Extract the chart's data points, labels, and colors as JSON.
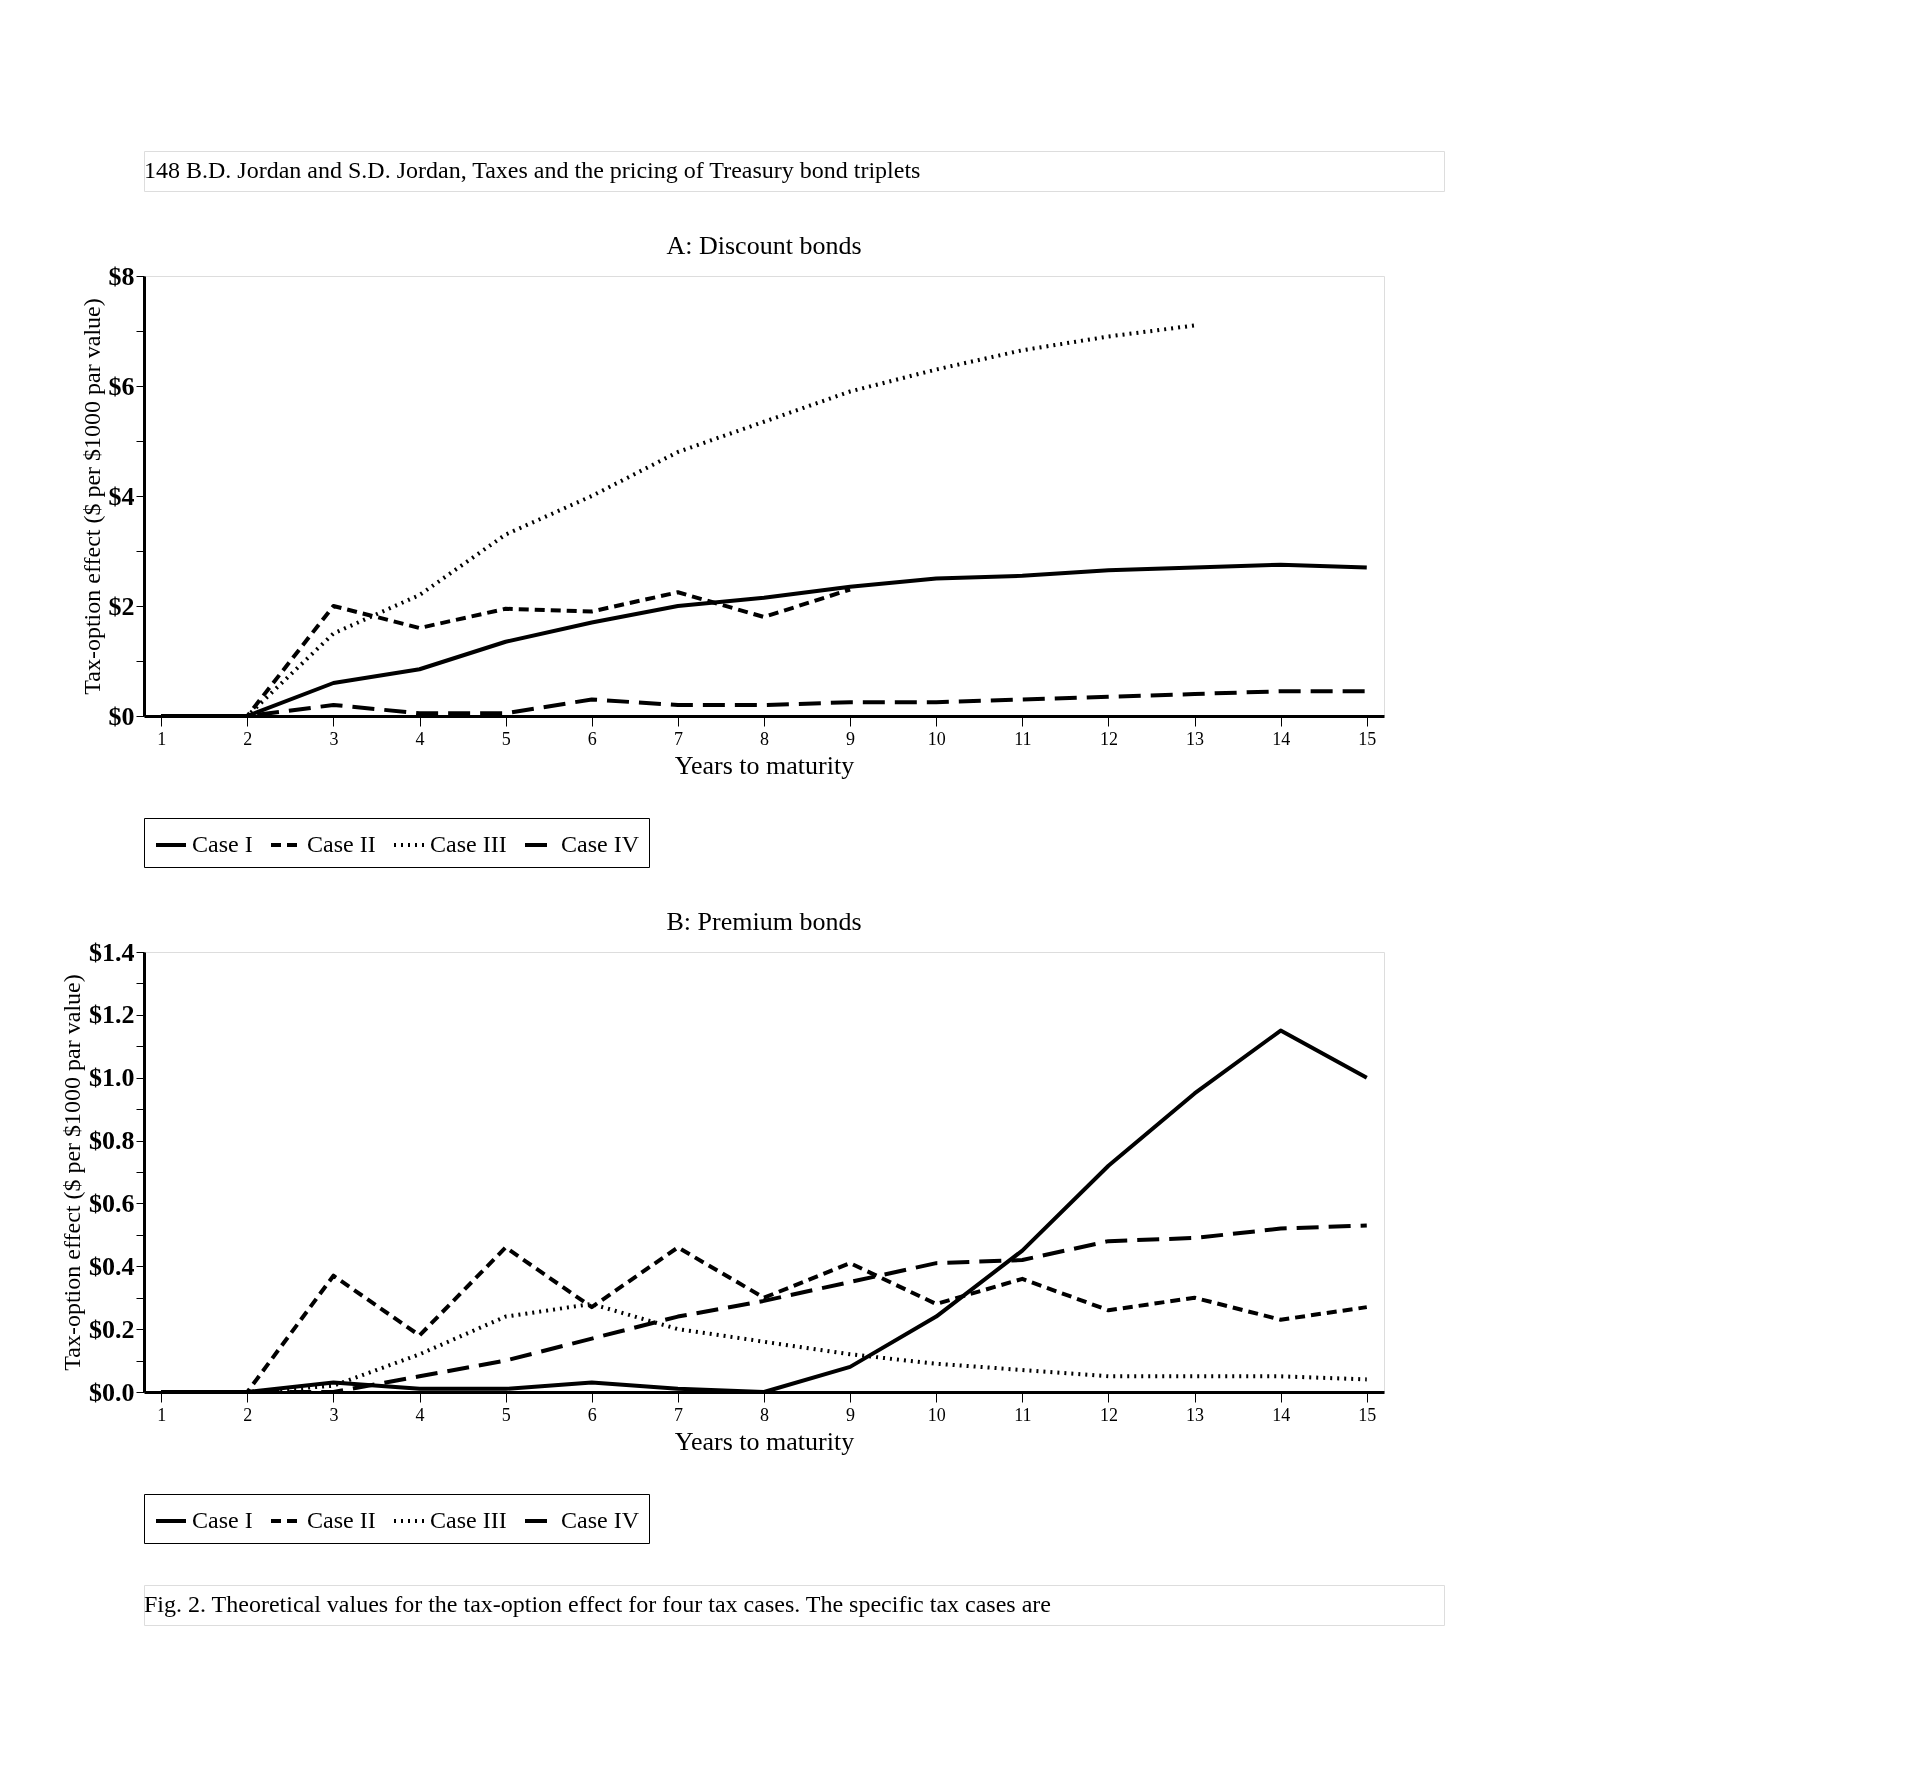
{
  "chart_data": [
    {
      "type": "line",
      "title": "A: Discount bonds",
      "xlabel": "Years to maturity",
      "ylabel": "Tax-option effect ($ per $1000 par value)",
      "annotations": [
        "148        B.D. Jordan and S.D. Jordan, Taxes and the pricing of Treasury bond triplets"
      ],
      "x": [
        1,
        2,
        3,
        4,
        5,
        6,
        7,
        8,
        9,
        10,
        11,
        12,
        13,
        14,
        15
      ],
      "series": [
        {
          "name": "Case I",
          "color": "#000000",
          "line_style": "solid",
          "values": [
            0,
            0,
            0.6,
            0.85,
            1.35,
            1.7,
            2.0,
            2.15,
            2.35,
            2.5,
            2.55,
            2.65,
            2.7,
            2.75,
            2.7
          ]
        },
        {
          "name": "Case II",
          "color": "#000000",
          "line_style": "dashed",
          "values": [
            0,
            0,
            2.0,
            1.6,
            1.95,
            1.9,
            2.25,
            1.8,
            2.3,
            null,
            null,
            null,
            null,
            null,
            null
          ]
        },
        {
          "name": "Case III",
          "color": "#000000",
          "line_style": "dotted",
          "values": [
            0,
            0,
            1.5,
            2.2,
            3.3,
            4.0,
            4.8,
            5.35,
            5.9,
            6.3,
            6.65,
            6.9,
            7.1,
            null,
            null
          ]
        },
        {
          "name": "Case IV",
          "color": "#000000",
          "line_style": "longdash",
          "values": [
            0,
            0,
            0.2,
            0.05,
            0.05,
            0.3,
            0.2,
            0.2,
            0.25,
            0.25,
            0.3,
            0.35,
            0.4,
            0.45,
            0.45
          ]
        }
      ],
      "xlim": [
        0.8,
        15.2
      ],
      "xticks": [
        1,
        2,
        3,
        4,
        5,
        6,
        7,
        8,
        9,
        10,
        11,
        12,
        13,
        14,
        15
      ],
      "ylim": [
        0,
        8
      ],
      "yticks": [
        {
          "value": 0,
          "label": "$0"
        },
        {
          "value": 1,
          "label": null
        },
        {
          "value": 2,
          "label": "$2"
        },
        {
          "value": 3,
          "label": null
        },
        {
          "value": 4,
          "label": "$4"
        },
        {
          "value": 5,
          "label": null
        },
        {
          "value": 6,
          "label": "$6"
        },
        {
          "value": 7,
          "label": null
        },
        {
          "value": 8,
          "label": "$8"
        }
      ],
      "grid": false,
      "legend": "bottom",
      "marker": "none"
    },
    {
      "type": "line",
      "title": "B: Premium bonds",
      "xlabel": "Years to maturity",
      "ylabel": "Tax-option effect ($ per $1000 par value)",
      "annotations": [
        "Fig. 2. Theoretical values for the tax-option effect for four tax cases. The specific tax cases are"
      ],
      "x": [
        1,
        2,
        3,
        4,
        5,
        6,
        7,
        8,
        9,
        10,
        11,
        12,
        13,
        14,
        15
      ],
      "series": [
        {
          "name": "Case I",
          "color": "#000000",
          "line_style": "solid",
          "values": [
            0,
            0,
            0.03,
            0.01,
            0.01,
            0.03,
            0.01,
            0,
            0.08,
            0.24,
            0.45,
            0.72,
            0.95,
            1.15,
            1.0
          ]
        },
        {
          "name": "Case II",
          "color": "#000000",
          "line_style": "dashed",
          "values": [
            0,
            0,
            0.37,
            0.18,
            0.46,
            0.27,
            0.46,
            0.3,
            0.41,
            0.28,
            0.36,
            0.26,
            0.3,
            0.23,
            0.27
          ]
        },
        {
          "name": "Case III",
          "color": "#000000",
          "line_style": "dotted",
          "values": [
            0,
            0,
            0.02,
            0.12,
            0.24,
            0.28,
            0.2,
            0.16,
            0.12,
            0.09,
            0.07,
            0.05,
            0.05,
            0.05,
            0.04
          ]
        },
        {
          "name": "Case IV",
          "color": "#000000",
          "line_style": "longdash",
          "values": [
            0,
            0,
            0,
            0.05,
            0.1,
            0.17,
            0.24,
            0.29,
            0.35,
            0.41,
            0.42,
            0.48,
            0.49,
            0.52,
            0.53
          ]
        }
      ],
      "xlim": [
        0.8,
        15.2
      ],
      "xticks": [
        1,
        2,
        3,
        4,
        5,
        6,
        7,
        8,
        9,
        10,
        11,
        12,
        13,
        14,
        15
      ],
      "ylim": [
        0,
        1.4
      ],
      "yticks": [
        {
          "value": 0,
          "label": "$0.0"
        },
        {
          "value": 0.1,
          "label": null
        },
        {
          "value": 0.2,
          "label": "$0.2"
        },
        {
          "value": 0.3,
          "label": null
        },
        {
          "value": 0.4,
          "label": "$0.4"
        },
        {
          "value": 0.5,
          "label": null
        },
        {
          "value": 0.6,
          "label": "$0.6"
        },
        {
          "value": 0.7,
          "label": null
        },
        {
          "value": 0.8,
          "label": "$0.8"
        },
        {
          "value": 0.9,
          "label": null
        },
        {
          "value": 1.0,
          "label": "$1.0"
        },
        {
          "value": 1.1,
          "label": null
        },
        {
          "value": 1.2,
          "label": "$1.2"
        },
        {
          "value": 1.3,
          "label": null
        },
        {
          "value": 1.4,
          "label": "$1.4"
        }
      ],
      "grid": false,
      "legend": "bottom",
      "marker": "none"
    }
  ]
}
